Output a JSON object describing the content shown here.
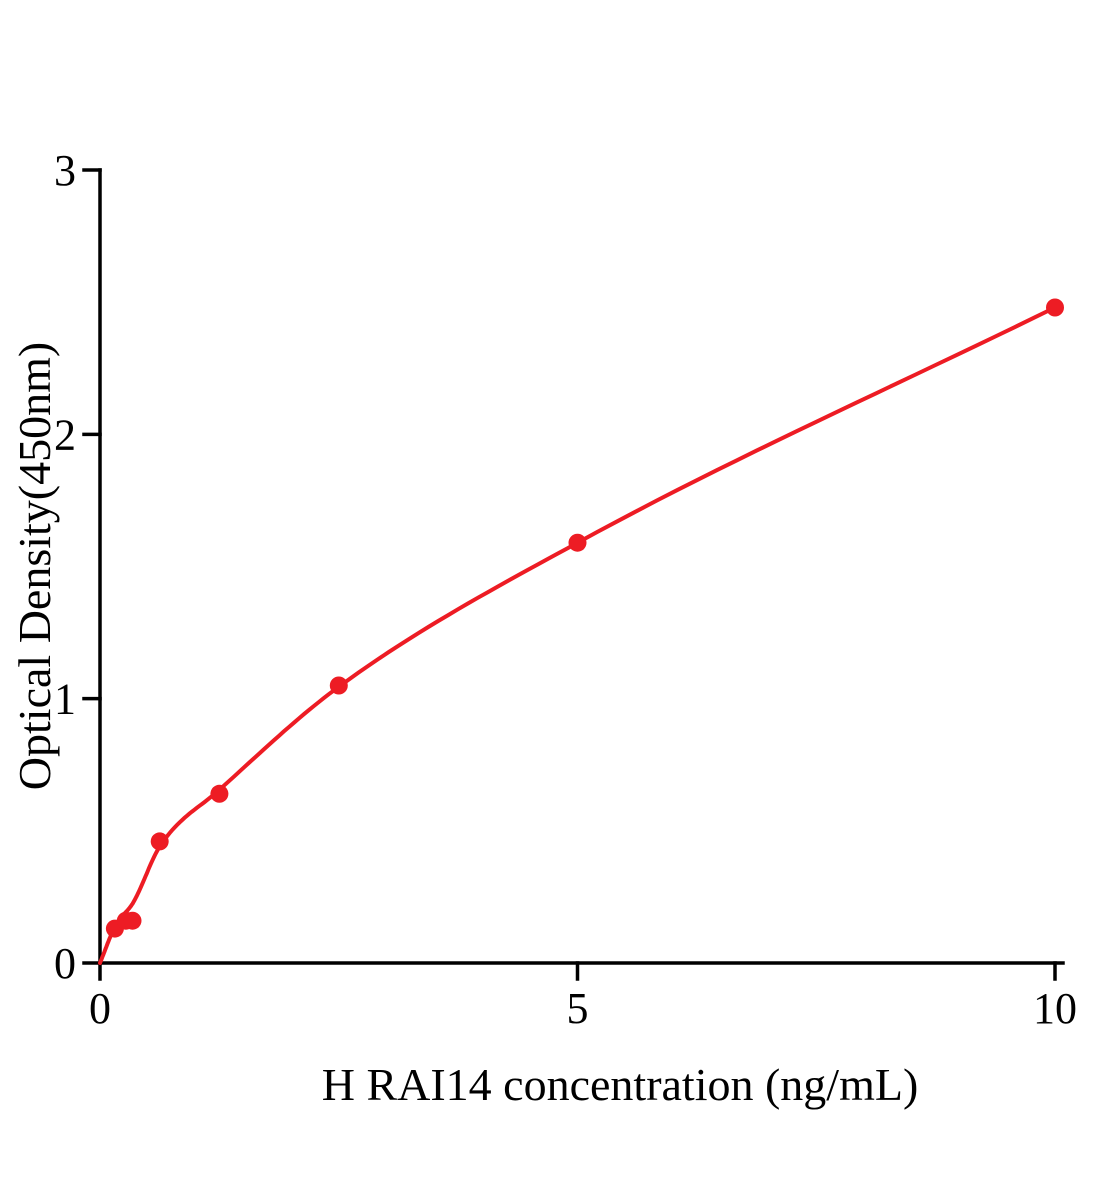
{
  "chart_data": {
    "type": "scatter",
    "title": "",
    "xlabel": "H RAI14 concentration (ng/mL)",
    "ylabel": "Optical Density(450nm)",
    "xlim": [
      0,
      10
    ],
    "ylim": [
      0,
      3
    ],
    "xticks": [
      0,
      5,
      10
    ],
    "yticks": [
      0,
      1,
      2,
      3
    ],
    "grid": false,
    "legend_position": "none",
    "points": [
      [
        0.156,
        0.13
      ],
      [
        0.27,
        0.16
      ],
      [
        0.34,
        0.16
      ],
      [
        0.625,
        0.46
      ],
      [
        1.25,
        0.64
      ],
      [
        2.5,
        1.05
      ],
      [
        5,
        1.59
      ],
      [
        10,
        2.48
      ]
    ],
    "curve": [
      [
        0,
        0
      ],
      [
        0.16,
        0.14
      ],
      [
        0.35,
        0.23
      ],
      [
        0.625,
        0.44
      ],
      [
        1.25,
        0.655
      ],
      [
        2.5,
        1.045
      ],
      [
        5,
        1.59
      ],
      [
        10,
        2.48
      ]
    ],
    "colors": {
      "line": "#ed1c24",
      "point": "#ed1c24",
      "axis": "#000000",
      "background": "#ffffff"
    }
  }
}
